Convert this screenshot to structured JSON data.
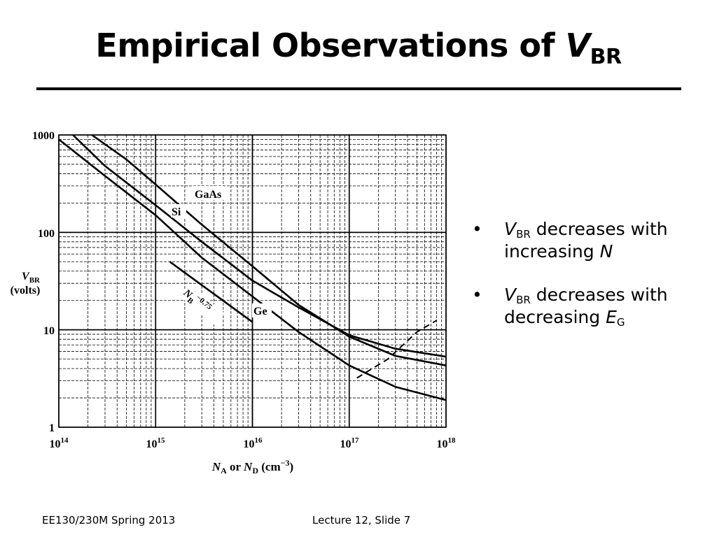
{
  "slide": {
    "title_text": "Empirical Observations of ",
    "title_var": "V",
    "title_sub": "BR"
  },
  "bullets": [
    {
      "var": "V",
      "sub": "BR",
      "text": " decreases with increasing ",
      "end_var": "N",
      "end_sub": ""
    },
    {
      "var": "V",
      "sub": "BR",
      "text": " decreases with decreasing ",
      "end_var": "E",
      "end_sub": "G"
    }
  ],
  "footer": {
    "course": "EE130/230M Spring 2013",
    "slide_number": "Lecture 12, Slide 7"
  },
  "chart_data": {
    "type": "line",
    "x_scale": "log",
    "y_scale": "log",
    "xlim": [
      100000000000000.0,
      1e+18
    ],
    "ylim": [
      1,
      1000
    ],
    "grid": true,
    "y_ticks": [
      "1000",
      "100",
      "10",
      "1"
    ],
    "x_ticks": [
      {
        "base": "10",
        "exp": "14"
      },
      {
        "base": "10",
        "exp": "15"
      },
      {
        "base": "10",
        "exp": "16"
      },
      {
        "base": "10",
        "exp": "17"
      },
      {
        "base": "10",
        "exp": "18"
      }
    ],
    "ylabel_line1_main": "V",
    "ylabel_line1_sub": "BR",
    "ylabel_line2": "(volts)",
    "xlabel_parts": {
      "a": "N",
      "a_sub": "A",
      "mid": " or ",
      "b": "N",
      "b_sub": "D",
      "unit": " (cm",
      "unit_exp": "−3",
      "close": ")"
    },
    "series": [
      {
        "name": "GaAs",
        "style": "solid",
        "points": [
          [
            140000000000000.0,
            1000
          ],
          [
            300000000000000.0,
            480
          ],
          [
            1000000000000000.0,
            190
          ],
          [
            3000000000000000.0,
            80
          ],
          [
            1e+16,
            32
          ],
          [
            3e+16,
            17
          ],
          [
            1e+17,
            8.8
          ],
          [
            3e+17,
            6.4
          ],
          [
            1e+18,
            5.3
          ]
        ]
      },
      {
        "name": "Si",
        "style": "solid",
        "points": [
          [
            220000000000000.0,
            1000
          ],
          [
            500000000000000.0,
            560
          ],
          [
            1000000000000000.0,
            310
          ],
          [
            3000000000000000.0,
            120
          ],
          [
            1e+16,
            45
          ],
          [
            3e+16,
            18
          ],
          [
            1e+17,
            8.5
          ],
          [
            3e+17,
            5.4
          ],
          [
            1e+18,
            4.3
          ]
        ]
      },
      {
        "name": "Ge",
        "style": "solid",
        "points": [
          [
            100000000000000.0,
            900
          ],
          [
            300000000000000.0,
            380
          ],
          [
            1000000000000000.0,
            150
          ],
          [
            3000000000000000.0,
            55
          ],
          [
            1e+16,
            22
          ],
          [
            3e+16,
            9.5
          ],
          [
            1e+17,
            4.3
          ],
          [
            3e+17,
            2.6
          ],
          [
            1e+18,
            1.9
          ]
        ]
      },
      {
        "name": "",
        "style": "dashed",
        "points": [
          [
            1.2e+17,
            3.2
          ],
          [
            2.5e+17,
            5.0
          ],
          [
            5e+17,
            9.5
          ],
          [
            8e+17,
            12.5
          ]
        ]
      },
      {
        "name": "",
        "style": "solid",
        "points": [
          [
            1400000000000000.0,
            50
          ],
          [
            1e+16,
            12
          ]
        ]
      }
    ],
    "annotations": [
      {
        "text": "GaAs"
      },
      {
        "text": "Si"
      },
      {
        "text": "Ge"
      },
      {
        "main": "N",
        "sub": "B",
        "exp": "−0.75"
      }
    ]
  }
}
